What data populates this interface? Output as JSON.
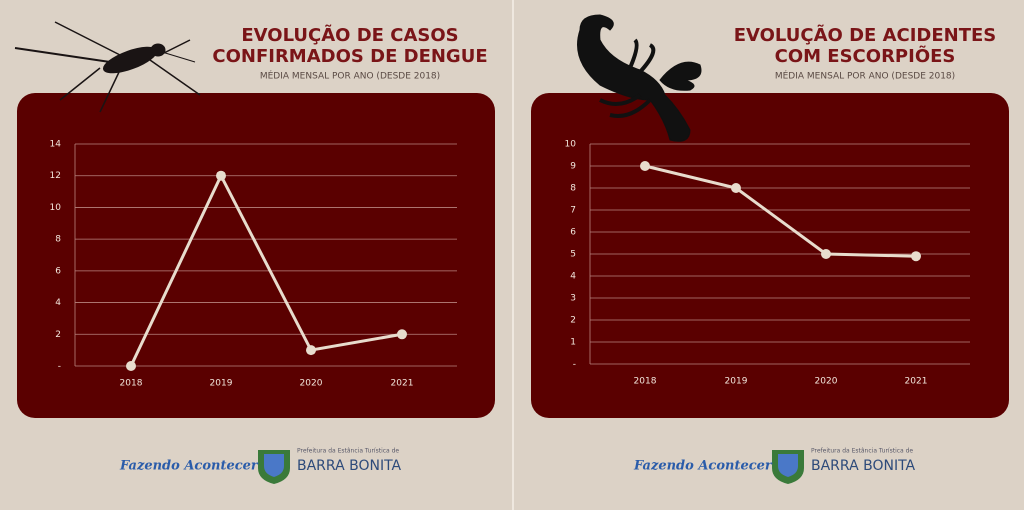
{
  "chart_data": [
    {
      "type": "line",
      "title": [
        "EVOLUÇÃO DE CASOS",
        "CONFIRMADOS DE DENGUE"
      ],
      "subtitle": "MÉDIA MENSAL POR ANO (DESDE 2018)",
      "categories": [
        "2018",
        "2019",
        "2020",
        "2021"
      ],
      "values": [
        0,
        12,
        1,
        2
      ],
      "color": "#e8dccd",
      "ylim": [
        0,
        14
      ],
      "yticks": [
        {
          "value": 0,
          "label": "-"
        },
        2,
        4,
        6,
        8,
        10,
        12,
        14
      ],
      "grid": true
    },
    {
      "type": "line",
      "title": [
        "EVOLUÇÃO DE ACIDENTES",
        "COM ESCORPIÕES"
      ],
      "subtitle": "MÉDIA MENSAL POR ANO (DESDE 2018)",
      "categories": [
        "2018",
        "2019",
        "2020",
        "2021"
      ],
      "values": [
        9,
        8,
        5,
        4.9
      ],
      "color": "#e8dccd",
      "ylim": [
        0,
        10
      ],
      "yticks": [
        {
          "value": 0,
          "label": "-"
        },
        1,
        2,
        3,
        4,
        5,
        6,
        7,
        8,
        9,
        10
      ],
      "grid": true
    }
  ],
  "footer": {
    "slogan": "Fazendo Acontecer",
    "prefeitura": "Prefeitura da Estância Turística de",
    "city": "BARRA BONITA"
  }
}
